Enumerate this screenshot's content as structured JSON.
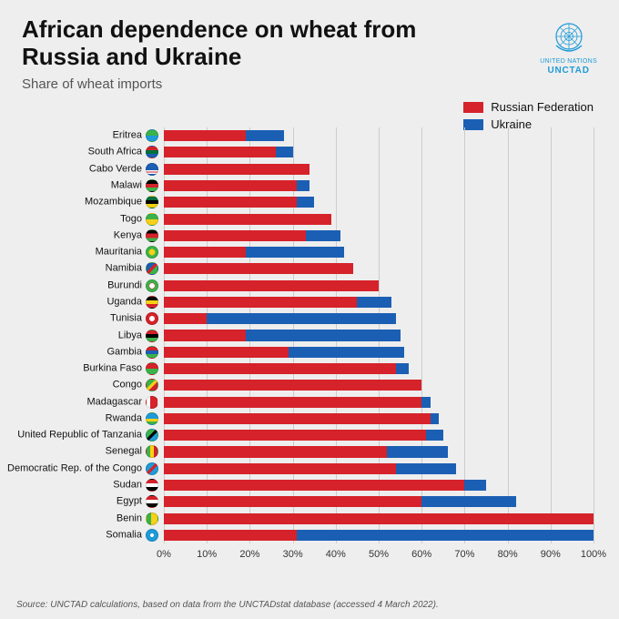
{
  "title_line1": "African dependence on wheat from",
  "title_line2": "Russia and Ukraine",
  "subtitle": "Share of wheat imports",
  "logo": {
    "line1": "UNITED NATIONS",
    "line2": "UNCTAD",
    "color": "#1e9bd8"
  },
  "legend": {
    "russia": {
      "label": "Russian Federation",
      "color": "#d6222a"
    },
    "ukraine": {
      "label": "Ukraine",
      "color": "#1b5fb4"
    }
  },
  "chart": {
    "type": "stacked-horizontal-bar",
    "xmin": 0,
    "xmax": 100,
    "xtick_step": 10,
    "xtick_suffix": "%",
    "grid_color": "#cccccc",
    "background_color": "#eeeeee",
    "bar_color_russia": "#d6222a",
    "bar_color_ukraine": "#1b5fb4",
    "label_fontsize": 11,
    "countries": [
      {
        "name": "Eritrea",
        "russia": 19,
        "ukraine": 9,
        "flag_bg": "linear-gradient(180deg,#3bb34a 50%,#1e9bd8 50%)"
      },
      {
        "name": "South Africa",
        "russia": 26,
        "ukraine": 4,
        "flag_bg": "linear-gradient(180deg,#d6222a 33%,#00703c 33% 66%,#1b5fb4 66%)"
      },
      {
        "name": "Cabo Verde",
        "russia": 34,
        "ukraine": 0,
        "flag_bg": "linear-gradient(180deg,#1b5fb4 60%,#fff 60% 70%,#d6222a 70% 80%,#fff 80% 90%,#1b5fb4 90%)"
      },
      {
        "name": "Malawi",
        "russia": 31,
        "ukraine": 3,
        "flag_bg": "linear-gradient(180deg,#000 33%,#d6222a 33% 66%,#3bb34a 66%)"
      },
      {
        "name": "Mozambique",
        "russia": 31,
        "ukraine": 4,
        "flag_bg": "linear-gradient(180deg,#00703c 33%,#000 33% 66%,#f7d117 66%)"
      },
      {
        "name": "Togo",
        "russia": 39,
        "ukraine": 0,
        "flag_bg": "linear-gradient(180deg,#3bb34a 50%,#f7d117 50%)"
      },
      {
        "name": "Kenya",
        "russia": 33,
        "ukraine": 8,
        "flag_bg": "linear-gradient(180deg,#000 30%,#d6222a 30% 70%,#3bb34a 70%)"
      },
      {
        "name": "Mauritania",
        "russia": 19,
        "ukraine": 23,
        "flag_bg": "radial-gradient(circle,#f7d117 40%,#3bb34a 40%)"
      },
      {
        "name": "Namibia",
        "russia": 44,
        "ukraine": 0,
        "flag_bg": "linear-gradient(135deg,#1b5fb4 40%,#d6222a 40% 60%,#3bb34a 60%)"
      },
      {
        "name": "Burundi",
        "russia": 50,
        "ukraine": 0,
        "flag_bg": "radial-gradient(circle,#fff 35%,#d6222a 35% 40%,#3bb34a 40%)"
      },
      {
        "name": "Uganda",
        "russia": 45,
        "ukraine": 8,
        "flag_bg": "linear-gradient(180deg,#000 33%,#f7d117 33% 66%,#d6222a 66%)"
      },
      {
        "name": "Tunisia",
        "russia": 10,
        "ukraine": 44,
        "flag_bg": "radial-gradient(circle,#fff 35%,#d6222a 35%)"
      },
      {
        "name": "Libya",
        "russia": 19,
        "ukraine": 36,
        "flag_bg": "linear-gradient(180deg,#d6222a 33%,#000 33% 66%,#3bb34a 66%)"
      },
      {
        "name": "Gambia",
        "russia": 29,
        "ukraine": 27,
        "flag_bg": "linear-gradient(180deg,#d6222a 33%,#1b5fb4 33% 66%,#3bb34a 66%)"
      },
      {
        "name": "Burkina Faso",
        "russia": 54,
        "ukraine": 3,
        "flag_bg": "linear-gradient(180deg,#d6222a 50%,#3bb34a 50%)"
      },
      {
        "name": "Congo",
        "russia": 60,
        "ukraine": 0,
        "flag_bg": "linear-gradient(135deg,#3bb34a 40%,#f7d117 40% 60%,#d6222a 60%)"
      },
      {
        "name": "Madagascar",
        "russia": 60,
        "ukraine": 2,
        "flag_bg": "linear-gradient(90deg,#fff 33%,#d6222a 33%),linear-gradient(180deg,#d6222a 50%,#3bb34a 50%)"
      },
      {
        "name": "Rwanda",
        "russia": 62,
        "ukraine": 2,
        "flag_bg": "linear-gradient(180deg,#1e9bd8 50%,#f7d117 50% 75%,#3bb34a 75%)"
      },
      {
        "name": "United Republic of Tanzania",
        "russia": 61,
        "ukraine": 4,
        "flag_bg": "linear-gradient(135deg,#3bb34a 40%,#000 40% 60%,#1e9bd8 60%)"
      },
      {
        "name": "Senegal",
        "russia": 52,
        "ukraine": 14,
        "flag_bg": "linear-gradient(90deg,#3bb34a 33%,#f7d117 33% 66%,#d6222a 66%)"
      },
      {
        "name": "Democratic Rep. of the Congo",
        "russia": 54,
        "ukraine": 14,
        "flag_bg": "linear-gradient(135deg,#1e9bd8 40%,#d6222a 40% 60%,#1e9bd8 60%)"
      },
      {
        "name": "Sudan",
        "russia": 70,
        "ukraine": 5,
        "flag_bg": "linear-gradient(180deg,#d6222a 33%,#fff 33% 66%,#000 66%)"
      },
      {
        "name": "Egypt",
        "russia": 60,
        "ukraine": 22,
        "flag_bg": "linear-gradient(180deg,#d6222a 33%,#fff 33% 66%,#000 66%)"
      },
      {
        "name": "Benin",
        "russia": 100,
        "ukraine": 0,
        "flag_bg": "linear-gradient(90deg,#3bb34a 40%,#f7d117 40%),linear-gradient(180deg,#f7d117 50%,#d6222a 50%)"
      },
      {
        "name": "Somalia",
        "russia": 31,
        "ukraine": 69,
        "flag_bg": "radial-gradient(circle,#fff 25%,#1e9bd8 25%)"
      }
    ]
  },
  "source": "Source: UNCTAD calculations, based on data from the UNCTADstat database (accessed 4 March 2022)."
}
